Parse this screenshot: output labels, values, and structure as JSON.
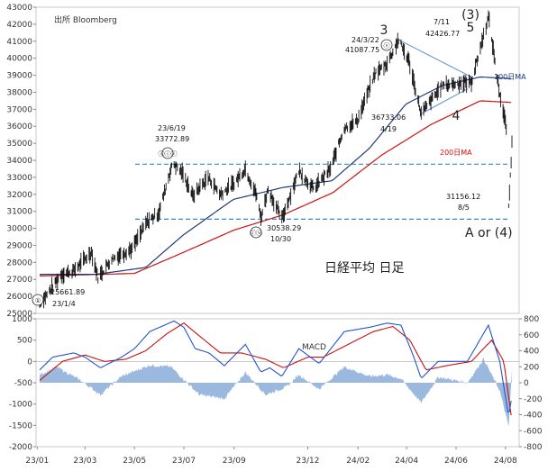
{
  "chart_data": [
    {
      "type": "line",
      "title": "日経平均 日足",
      "source": "出所 Bloomberg",
      "ylim": [
        25000,
        43000
      ],
      "yticks": [
        "25000",
        "26000",
        "27000",
        "28000",
        "29000",
        "30000",
        "31000",
        "32000",
        "33000",
        "34000",
        "35000",
        "36000",
        "37000",
        "38000",
        "39000",
        "40000",
        "41000",
        "42000",
        "43000"
      ],
      "x_start": "2023-01-04",
      "x_end": "2024-08-09",
      "price_anchors": [
        [
          "2023-01-04",
          25662
        ],
        [
          "2023-01-13",
          26100
        ],
        [
          "2023-01-31",
          27300
        ],
        [
          "2023-02-15",
          27500
        ],
        [
          "2023-03-09",
          28600
        ],
        [
          "2023-03-17",
          27100
        ],
        [
          "2023-04-03",
          28200
        ],
        [
          "2023-04-28",
          28800
        ],
        [
          "2023-05-17",
          30400
        ],
        [
          "2023-05-31",
          30900
        ],
        [
          "2023-06-15",
          33500
        ],
        [
          "2023-06-19",
          33773
        ],
        [
          "2023-06-30",
          33200
        ],
        [
          "2023-07-12",
          31900
        ],
        [
          "2023-07-31",
          33000
        ],
        [
          "2023-08-15",
          32000
        ],
        [
          "2023-08-31",
          32600
        ],
        [
          "2023-09-15",
          33500
        ],
        [
          "2023-09-29",
          31900
        ],
        [
          "2023-10-04",
          30600
        ],
        [
          "2023-10-13",
          32300
        ],
        [
          "2023-10-30",
          30538
        ],
        [
          "2023-11-20",
          33400
        ],
        [
          "2023-12-08",
          32300
        ],
        [
          "2023-12-29",
          33500
        ],
        [
          "2024-01-15",
          35900
        ],
        [
          "2024-01-31",
          36300
        ],
        [
          "2024-02-22",
          39100
        ],
        [
          "2024-03-08",
          39700
        ],
        [
          "2024-03-22",
          41088
        ],
        [
          "2024-04-04",
          39800
        ],
        [
          "2024-04-19",
          36733
        ],
        [
          "2024-05-15",
          38400
        ],
        [
          "2024-05-31",
          38500
        ],
        [
          "2024-06-20",
          38600
        ],
        [
          "2024-07-11",
          42427
        ],
        [
          "2024-07-25",
          37900
        ],
        [
          "2024-08-02",
          35900
        ],
        [
          "2024-08-05",
          31156
        ],
        [
          "2024-08-09",
          35000
        ]
      ],
      "ma100_anchors": [
        [
          "2023-01-04",
          27300
        ],
        [
          "2023-03-15",
          27300
        ],
        [
          "2023-05-15",
          27700
        ],
        [
          "2023-06-30",
          29600
        ],
        [
          "2023-08-31",
          31700
        ],
        [
          "2023-10-31",
          32400
        ],
        [
          "2023-12-31",
          32800
        ],
        [
          "2024-02-15",
          34700
        ],
        [
          "2024-03-31",
          37300
        ],
        [
          "2024-05-15",
          38400
        ],
        [
          "2024-07-01",
          38900
        ],
        [
          "2024-08-09",
          38800
        ]
      ],
      "ma200_anchors": [
        [
          "2023-01-04",
          27200
        ],
        [
          "2023-05-01",
          27350
        ],
        [
          "2023-07-01",
          28600
        ],
        [
          "2023-09-01",
          29900
        ],
        [
          "2023-11-01",
          30800
        ],
        [
          "2024-01-01",
          32100
        ],
        [
          "2024-03-01",
          34300
        ],
        [
          "2024-05-01",
          36100
        ],
        [
          "2024-07-01",
          37500
        ],
        [
          "2024-08-09",
          37400
        ]
      ],
      "annotations": [
        {
          "text": "25661.89",
          "date": "2023-01-04"
        },
        {
          "text": "23/1/4",
          "date": "2023-01-04"
        },
        {
          "text": "23/6/19",
          "date": "2023-06-19"
        },
        {
          "text": "33772.89",
          "date": "2023-06-19"
        },
        {
          "text": "30538.29",
          "date": "2023-10-30"
        },
        {
          "text": "10/30",
          "date": "2023-10-30"
        },
        {
          "text": "24/3/22",
          "date": "2024-03-22"
        },
        {
          "text": "41087.75",
          "date": "2024-03-22"
        },
        {
          "text": "36733.06",
          "date": "2024-04-19"
        },
        {
          "text": "4/19",
          "date": "2024-04-19"
        },
        {
          "text": "7/11",
          "date": "2024-07-11"
        },
        {
          "text": "42426.77",
          "date": "2024-07-11"
        },
        {
          "text": "31156.12",
          "date": "2024-08-05"
        },
        {
          "text": "8/5",
          "date": "2024-08-05"
        }
      ],
      "wave_labels": [
        {
          "text": "①",
          "date": "2023-01-04"
        },
        {
          "text": "ⓘⓘⓘ",
          "date": "2023-06-19"
        },
        {
          "text": "ⓘⓥ",
          "date": "2023-10-30"
        },
        {
          "text": "3",
          "date": "2024-03-22"
        },
        {
          "text": "ⓥ",
          "date": "2024-03-22"
        },
        {
          "text": "4",
          "date": "2024-04-19"
        },
        {
          "text": "(3)",
          "date": "2024-07-11"
        },
        {
          "text": "5",
          "date": "2024-07-11"
        },
        {
          "text": "A or (4)",
          "date": "2024-08-05"
        }
      ],
      "hlines": [
        33773,
        30538
      ],
      "legend": {
        "ma100": "100日MA",
        "ma200": "200日MA"
      },
      "colors": {
        "price": "#111111",
        "ma100": "#1f3a7a",
        "ma200": "#cc1111",
        "hline": "#3a86c8",
        "trend": "#5a8fd0"
      }
    },
    {
      "type": "line",
      "title": "MACD",
      "left_ylim": [
        -2000,
        1000
      ],
      "right_ylim": [
        -800,
        800
      ],
      "left_ticks": [
        "1000",
        "500",
        "0",
        "-500",
        "-1000",
        "-1500",
        "-2000"
      ],
      "right_ticks": [
        "800",
        "600",
        "400",
        "200",
        "0",
        "-200",
        "-400",
        "-600",
        "-800"
      ],
      "x_ticks": [
        "23/01",
        "23/03",
        "23/05",
        "23/07",
        "23/09",
        "23/12",
        "24/02",
        "24/04",
        "24/06",
        "24/08"
      ],
      "macd_anchors": [
        [
          "2023-01-04",
          -200
        ],
        [
          "2023-01-20",
          100
        ],
        [
          "2023-02-15",
          200
        ],
        [
          "2023-03-01",
          100
        ],
        [
          "2023-03-20",
          -150
        ],
        [
          "2023-04-15",
          100
        ],
        [
          "2023-05-01",
          300
        ],
        [
          "2023-05-20",
          700
        ],
        [
          "2023-06-19",
          950
        ],
        [
          "2023-07-01",
          800
        ],
        [
          "2023-07-15",
          300
        ],
        [
          "2023-08-01",
          200
        ],
        [
          "2023-08-20",
          -100
        ],
        [
          "2023-09-15",
          400
        ],
        [
          "2023-10-04",
          -250
        ],
        [
          "2023-10-15",
          -150
        ],
        [
          "2023-10-30",
          -350
        ],
        [
          "2023-11-20",
          300
        ],
        [
          "2023-12-15",
          -50
        ],
        [
          "2024-01-15",
          700
        ],
        [
          "2024-02-15",
          800
        ],
        [
          "2024-03-08",
          900
        ],
        [
          "2024-03-25",
          850
        ],
        [
          "2024-04-10",
          100
        ],
        [
          "2024-04-19",
          -400
        ],
        [
          "2024-05-10",
          0
        ],
        [
          "2024-06-15",
          0
        ],
        [
          "2024-07-11",
          850
        ],
        [
          "2024-07-25",
          0
        ],
        [
          "2024-08-05",
          -1300
        ],
        [
          "2024-08-09",
          -800
        ]
      ],
      "signal_anchors": [
        [
          "2023-01-04",
          -450
        ],
        [
          "2023-02-01",
          0
        ],
        [
          "2023-03-01",
          150
        ],
        [
          "2023-03-25",
          0
        ],
        [
          "2023-04-20",
          50
        ],
        [
          "2023-05-15",
          250
        ],
        [
          "2023-06-10",
          650
        ],
        [
          "2023-07-01",
          900
        ],
        [
          "2023-07-20",
          600
        ],
        [
          "2023-08-15",
          200
        ],
        [
          "2023-09-10",
          200
        ],
        [
          "2023-10-10",
          50
        ],
        [
          "2023-11-01",
          -150
        ],
        [
          "2023-12-01",
          100
        ],
        [
          "2023-12-20",
          100
        ],
        [
          "2024-01-25",
          450
        ],
        [
          "2024-02-20",
          700
        ],
        [
          "2024-03-15",
          820
        ],
        [
          "2024-04-05",
          500
        ],
        [
          "2024-04-25",
          -200
        ],
        [
          "2024-05-20",
          -100
        ],
        [
          "2024-06-20",
          0
        ],
        [
          "2024-07-15",
          500
        ],
        [
          "2024-07-30",
          0
        ],
        [
          "2024-08-09",
          -1400
        ]
      ],
      "hist_anchors": [
        [
          "2023-01-04",
          100
        ],
        [
          "2023-01-25",
          200
        ],
        [
          "2023-02-25",
          20
        ],
        [
          "2023-03-20",
          -150
        ],
        [
          "2023-04-15",
          80
        ],
        [
          "2023-05-20",
          220
        ],
        [
          "2023-06-15",
          200
        ],
        [
          "2023-07-05",
          0
        ],
        [
          "2023-07-20",
          -150
        ],
        [
          "2023-08-20",
          -200
        ],
        [
          "2023-09-15",
          130
        ],
        [
          "2023-10-10",
          -150
        ],
        [
          "2023-11-05",
          -50
        ],
        [
          "2023-11-20",
          100
        ],
        [
          "2023-12-15",
          -80
        ],
        [
          "2024-01-15",
          200
        ],
        [
          "2024-02-15",
          80
        ],
        [
          "2024-03-08",
          100
        ],
        [
          "2024-03-25",
          50
        ],
        [
          "2024-04-19",
          -250
        ],
        [
          "2024-05-10",
          70
        ],
        [
          "2024-06-15",
          0
        ],
        [
          "2024-07-05",
          300
        ],
        [
          "2024-07-25",
          -100
        ],
        [
          "2024-08-05",
          -550
        ],
        [
          "2024-08-09",
          150
        ]
      ],
      "colors": {
        "macd": "#2255cc",
        "signal": "#cc1111",
        "hist": "#9bb8de"
      }
    }
  ]
}
